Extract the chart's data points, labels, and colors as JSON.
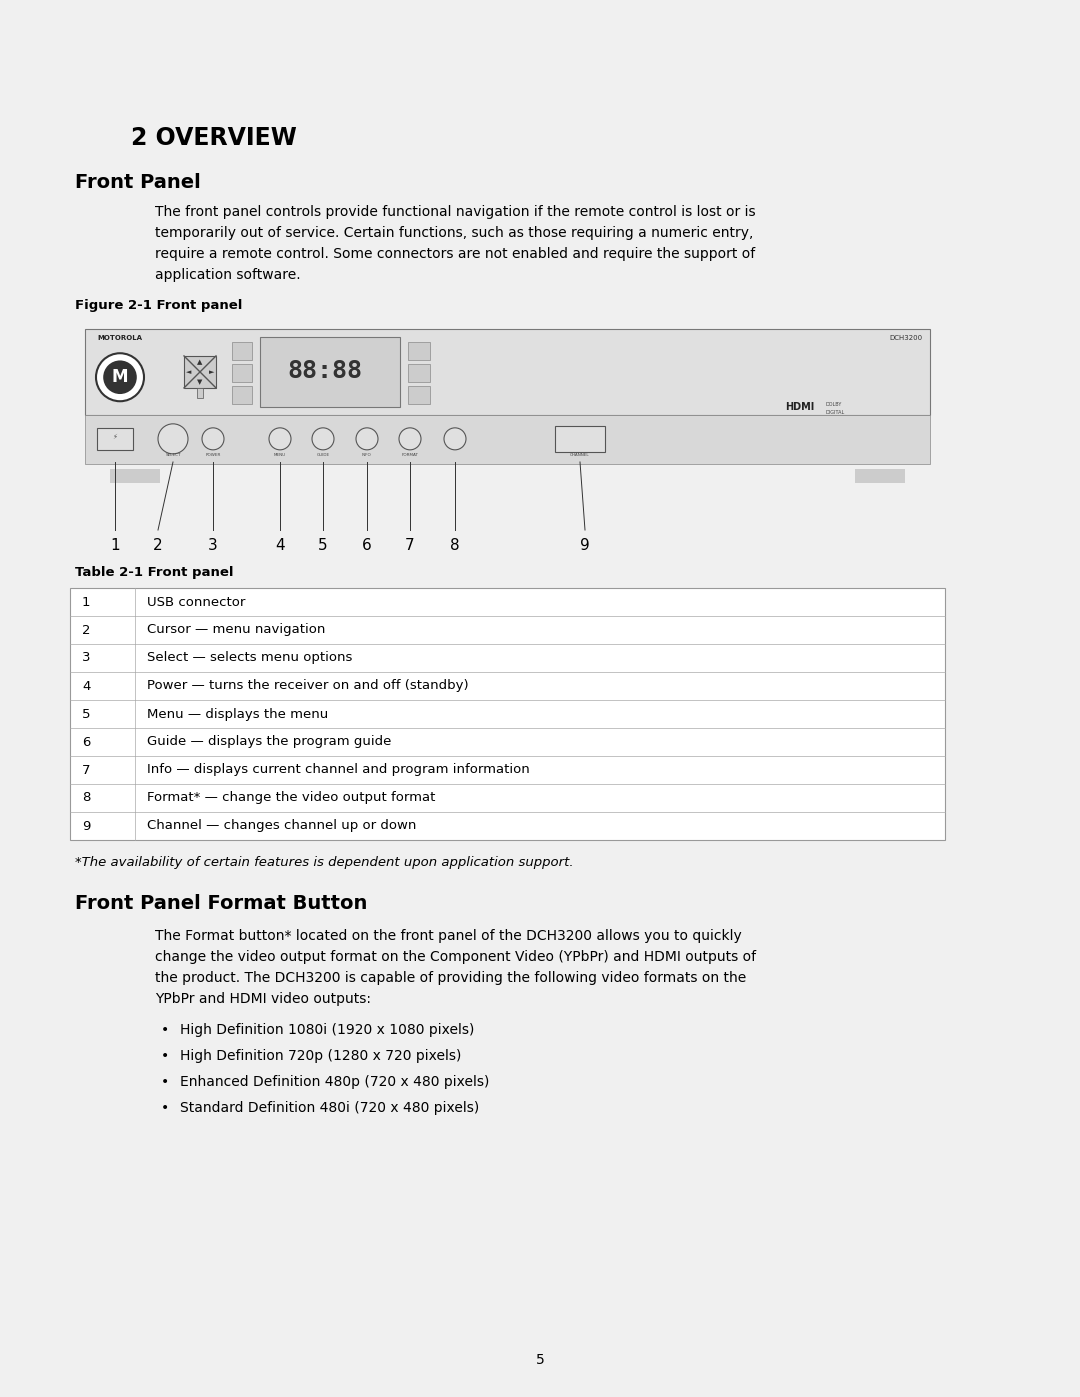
{
  "bg_color": "#ffffff",
  "page_number": "5",
  "chapter_title": "2 OVERVIEW",
  "section1_title": "Front Panel",
  "section1_body_lines": [
    "The front panel controls provide functional navigation if the remote control is lost or is",
    "temporarily out of service. Certain functions, such as those requiring a numeric entry,",
    "require a remote control. Some connectors are not enabled and require the support of",
    "application software."
  ],
  "figure_label": "Figure 2-1 Front panel",
  "table_label": "Table 2-1 Front panel",
  "table_rows": [
    [
      "1",
      "USB connector"
    ],
    [
      "2",
      "Cursor — menu navigation"
    ],
    [
      "3",
      "Select — selects menu options"
    ],
    [
      "4",
      "Power — turns the receiver on and off (standby)"
    ],
    [
      "5",
      "Menu — displays the menu"
    ],
    [
      "6",
      "Guide — displays the program guide"
    ],
    [
      "7",
      "Info — displays current channel and program information"
    ],
    [
      "8",
      "Format* — change the video output format"
    ],
    [
      "9",
      "Channel — changes channel up or down"
    ]
  ],
  "footnote": "*The availability of certain features is dependent upon application support.",
  "section2_title": "Front Panel Format Button",
  "section2_body_lines": [
    "The Format button* located on the front panel of the DCH3200 allows you to quickly",
    "change the video output format on the Component Video (YPbPr) and HDMI outputs of",
    "the product. The DCH3200 is capable of providing the following video formats on the",
    "YPbPr and HDMI video outputs:"
  ],
  "bullet_items": [
    "High Definition 1080i (1920 x 1080 pixels)",
    "High Definition 720p (1280 x 720 pixels)",
    "Enhanced Definition 480p (720 x 480 pixels)",
    "Standard Definition 480i (720 x 480 pixels)"
  ],
  "text_color": "#000000",
  "table_border_color": "#999999"
}
